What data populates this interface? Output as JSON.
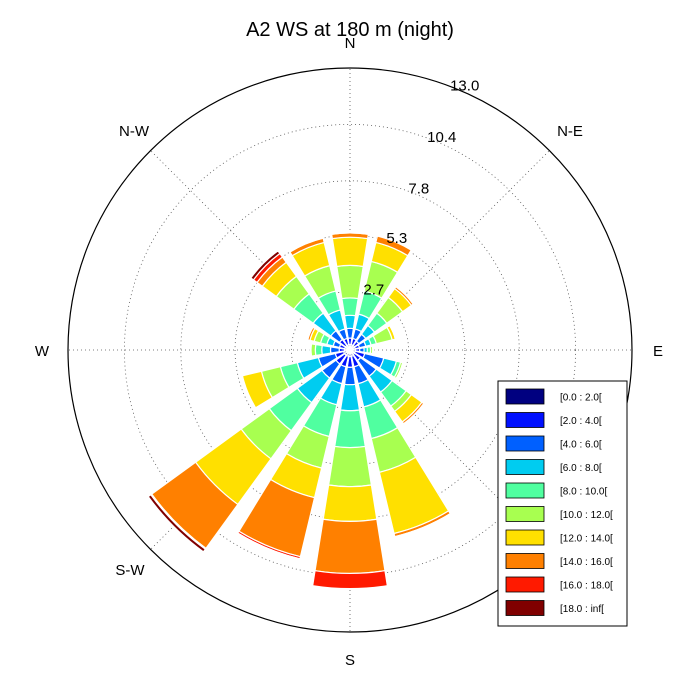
{
  "chart_data": {
    "type": "windrose",
    "title": "A2 WS at 180 m (night)",
    "directions": [
      "N",
      "NNE",
      "NE",
      "ENE",
      "E",
      "ESE",
      "SE",
      "SSE",
      "S",
      "SSW",
      "SW",
      "WSW",
      "W",
      "WNW",
      "NW",
      "NNW"
    ],
    "direction_labels": [
      "N",
      "N-E",
      "E",
      "",
      "S",
      "S-W",
      "W",
      "N-W"
    ],
    "radial_ticks": [
      "2.7",
      "5.3",
      "7.8",
      "10.4",
      "13.0"
    ],
    "radial_tick_values": [
      2.7,
      5.3,
      7.8,
      10.4,
      13.0
    ],
    "rmax": 13.0,
    "bins": [
      "[0.0 : 2.0[",
      "[2.0 : 4.0[",
      "[4.0 : 6.0[",
      "[6.0 : 8.0[",
      "[8.0 : 10.0[",
      "[10.0 : 12.0[",
      "[12.0 : 14.0[",
      "[14.0 : 16.0[",
      "[16.0 : 18.0[",
      "[18.0 : inf["
    ],
    "colors": [
      "#000080",
      "#0010ff",
      "#0060ff",
      "#00ccf0",
      "#50ffa0",
      "#a8ff50",
      "#ffe000",
      "#ff8000",
      "#ff1a00",
      "#800000"
    ],
    "cumulative": [
      [
        0.25,
        0.55,
        1.0,
        1.6,
        2.4,
        3.9,
        5.2,
        5.4,
        5.45,
        5.45
      ],
      [
        0.25,
        0.55,
        1.0,
        1.7,
        2.8,
        4.2,
        5.1,
        5.4,
        5.4,
        5.4
      ],
      [
        0.25,
        0.5,
        0.9,
        1.4,
        2.1,
        3.0,
        3.5,
        3.6,
        3.6,
        3.6
      ],
      [
        0.25,
        0.45,
        0.75,
        1.0,
        1.25,
        2.0,
        2.15,
        2.2,
        2.2,
        2.2
      ],
      [
        0.25,
        0.45,
        0.65,
        0.8,
        0.95,
        1.05,
        1.1,
        1.1,
        1.1,
        1.1
      ],
      [
        0.25,
        0.7,
        1.6,
        2.2,
        2.4,
        2.5,
        2.55,
        2.55,
        2.55,
        2.55
      ],
      [
        0.25,
        0.6,
        1.5,
        2.4,
        3.2,
        3.5,
        4.1,
        4.2,
        4.2,
        4.2
      ],
      [
        0.3,
        0.8,
        1.6,
        2.7,
        4.2,
        5.8,
        8.7,
        8.85,
        8.9,
        8.9
      ],
      [
        0.3,
        0.8,
        1.6,
        2.8,
        4.5,
        6.3,
        7.9,
        10.3,
        11.0,
        11.0
      ],
      [
        0.3,
        0.8,
        1.6,
        2.6,
        4.1,
        5.6,
        7.0,
        9.8,
        9.9,
        9.95
      ],
      [
        0.3,
        0.8,
        1.6,
        3.0,
        4.6,
        6.2,
        8.8,
        11.3,
        11.35,
        11.5
      ],
      [
        0.3,
        0.7,
        1.5,
        2.5,
        3.3,
        4.2,
        5.1,
        5.1,
        5.1,
        5.1
      ],
      [
        0.25,
        0.5,
        0.9,
        1.3,
        1.6,
        1.8,
        1.85,
        1.85,
        1.85,
        1.85
      ],
      [
        0.25,
        0.5,
        0.8,
        1.1,
        1.4,
        1.7,
        1.9,
        2.0,
        2.0,
        2.0
      ],
      [
        0.25,
        0.6,
        1.1,
        2.1,
        3.2,
        4.2,
        5.0,
        5.3,
        5.5,
        5.65
      ],
      [
        0.25,
        0.55,
        1.0,
        1.9,
        2.8,
        4.0,
        5.1,
        5.3,
        5.35,
        5.35
      ]
    ],
    "grid": "dotted",
    "legend_position": "bottom-right"
  }
}
